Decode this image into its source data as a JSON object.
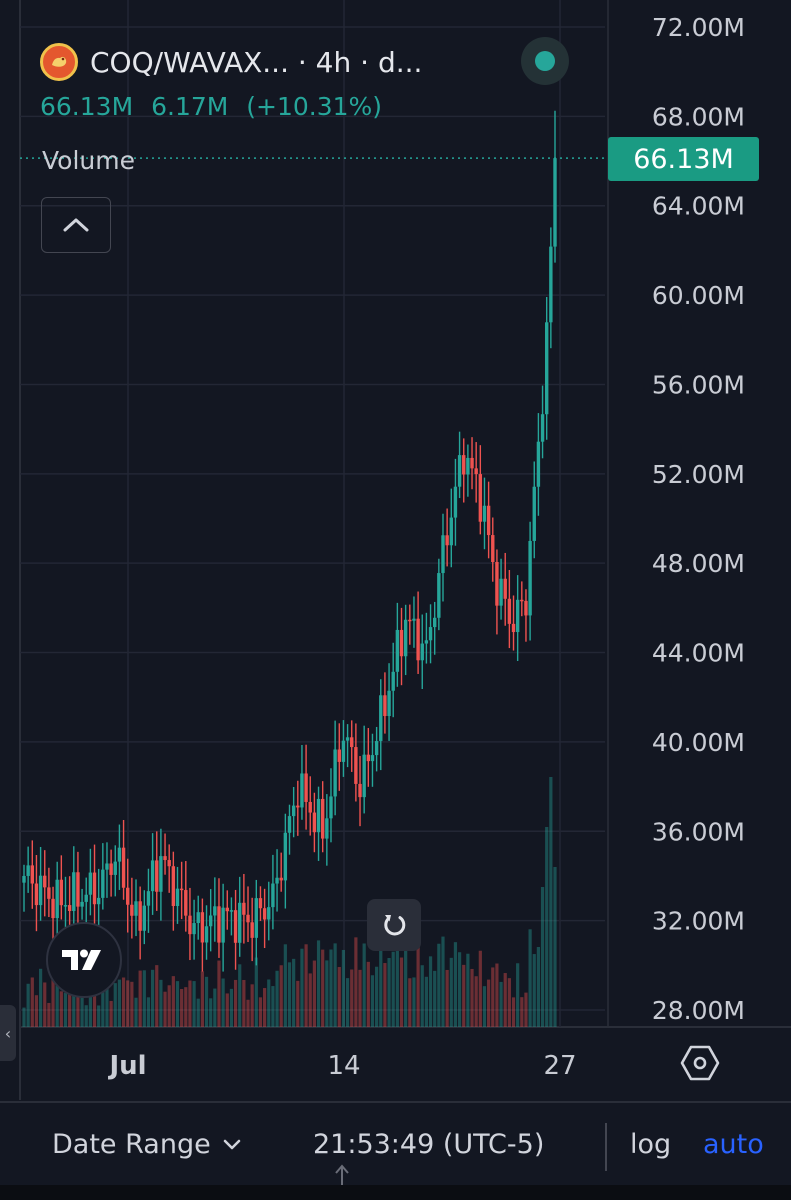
{
  "header": {
    "symbol": "COQ/WAVAX... · 4h · d...",
    "last_value": "66.13M",
    "change": "6.17M",
    "change_pct": "(+10.31%)",
    "indicator_label": "Volume"
  },
  "price_tag": "66.13M",
  "bottom_bar": {
    "date_range_label": "Date Range",
    "clock": "21:53:49 (UTC-5)",
    "log_label": "log",
    "auto_label": "auto"
  },
  "colors": {
    "background": "#131722",
    "up": "#26a69a",
    "down": "#ef5350",
    "grid": "#232735",
    "accent_blue": "#2962ff",
    "price_tag": "#1a9b83"
  },
  "icons": [
    "coin-logo-icon",
    "chevron-up-icon",
    "status-dot-icon",
    "tradingview-logo-icon",
    "reset-icon",
    "settings-hexagon-icon",
    "chevron-down-icon",
    "chevron-left-icon"
  ],
  "chart_data": {
    "type": "candlestick",
    "interval": "4h",
    "x_ticks": [
      "Jul",
      "14",
      "27"
    ],
    "y_ticks": [
      "72.00M",
      "68.00M",
      "64.00M",
      "60.00M",
      "56.00M",
      "52.00M",
      "48.00M",
      "44.00M",
      "40.00M",
      "36.00M",
      "32.00M",
      "28.00M"
    ],
    "ylim": [
      28,
      72
    ],
    "y_unit": "M",
    "last_price": 66.13,
    "grid": true,
    "volume_overlay": true,
    "close_path": [
      {
        "pos": 0,
        "close": 34.0
      },
      {
        "pos": 8,
        "close": 32.8
      },
      {
        "pos": 18,
        "close": 33.4
      },
      {
        "pos": 22,
        "close": 35.0
      },
      {
        "pos": 27,
        "close": 31.8
      },
      {
        "pos": 33,
        "close": 34.8
      },
      {
        "pos": 37,
        "close": 33.2
      },
      {
        "pos": 41,
        "close": 31.6
      },
      {
        "pos": 48,
        "close": 32.2
      },
      {
        "pos": 55,
        "close": 32.0
      },
      {
        "pos": 60,
        "close": 33.0
      },
      {
        "pos": 66,
        "close": 38.0
      },
      {
        "pos": 72,
        "close": 36.0
      },
      {
        "pos": 77,
        "close": 40.5
      },
      {
        "pos": 81,
        "close": 38.0
      },
      {
        "pos": 86,
        "close": 41.0
      },
      {
        "pos": 92,
        "close": 45.5
      },
      {
        "pos": 97,
        "close": 44.0
      },
      {
        "pos": 101,
        "close": 48.5
      },
      {
        "pos": 106,
        "close": 53.0
      },
      {
        "pos": 110,
        "close": 51.0
      },
      {
        "pos": 114,
        "close": 47.0
      },
      {
        "pos": 118,
        "close": 45.3
      },
      {
        "pos": 121,
        "close": 46.5
      },
      {
        "pos": 123,
        "close": 51.0
      },
      {
        "pos": 126,
        "close": 58.0
      },
      {
        "pos": 128,
        "close": 66.13
      }
    ]
  }
}
